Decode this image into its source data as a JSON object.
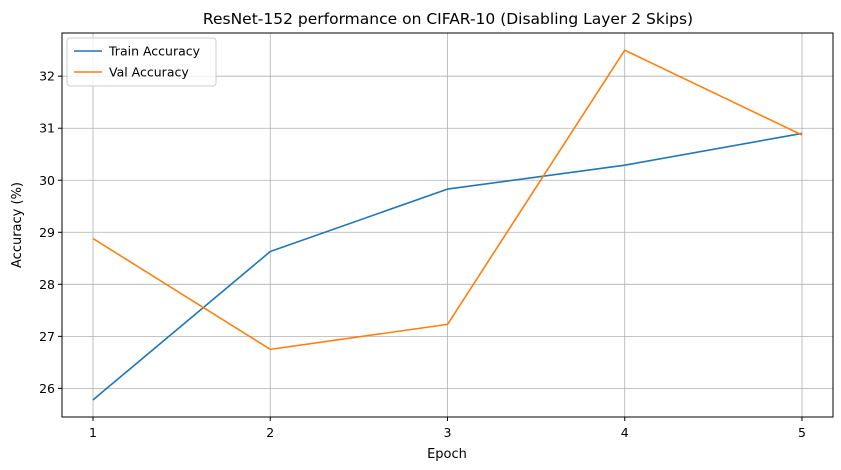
{
  "chart_data": {
    "type": "line",
    "title": "ResNet-152 performance on CIFAR-10 (Disabling Layer 2 Skips)",
    "xlabel": "Epoch",
    "ylabel": "Accuracy (%)",
    "x": [
      1,
      2,
      3,
      4,
      5
    ],
    "x_ticks": [
      "1",
      "2",
      "3",
      "4",
      "5"
    ],
    "xlim": [
      0.825,
      5.175
    ],
    "y_ticks": [
      "26",
      "27",
      "28",
      "29",
      "30",
      "31",
      "32"
    ],
    "ylim": [
      25.45,
      32.83
    ],
    "grid": true,
    "legend_position": "top-left",
    "series": [
      {
        "name": "Train Accuracy",
        "color": "#1f77b4",
        "values": [
          25.78,
          28.63,
          29.83,
          30.29,
          30.9
        ]
      },
      {
        "name": "Val Accuracy",
        "color": "#ff7f0e",
        "values": [
          28.88,
          26.75,
          27.23,
          32.5,
          30.87
        ]
      }
    ]
  }
}
